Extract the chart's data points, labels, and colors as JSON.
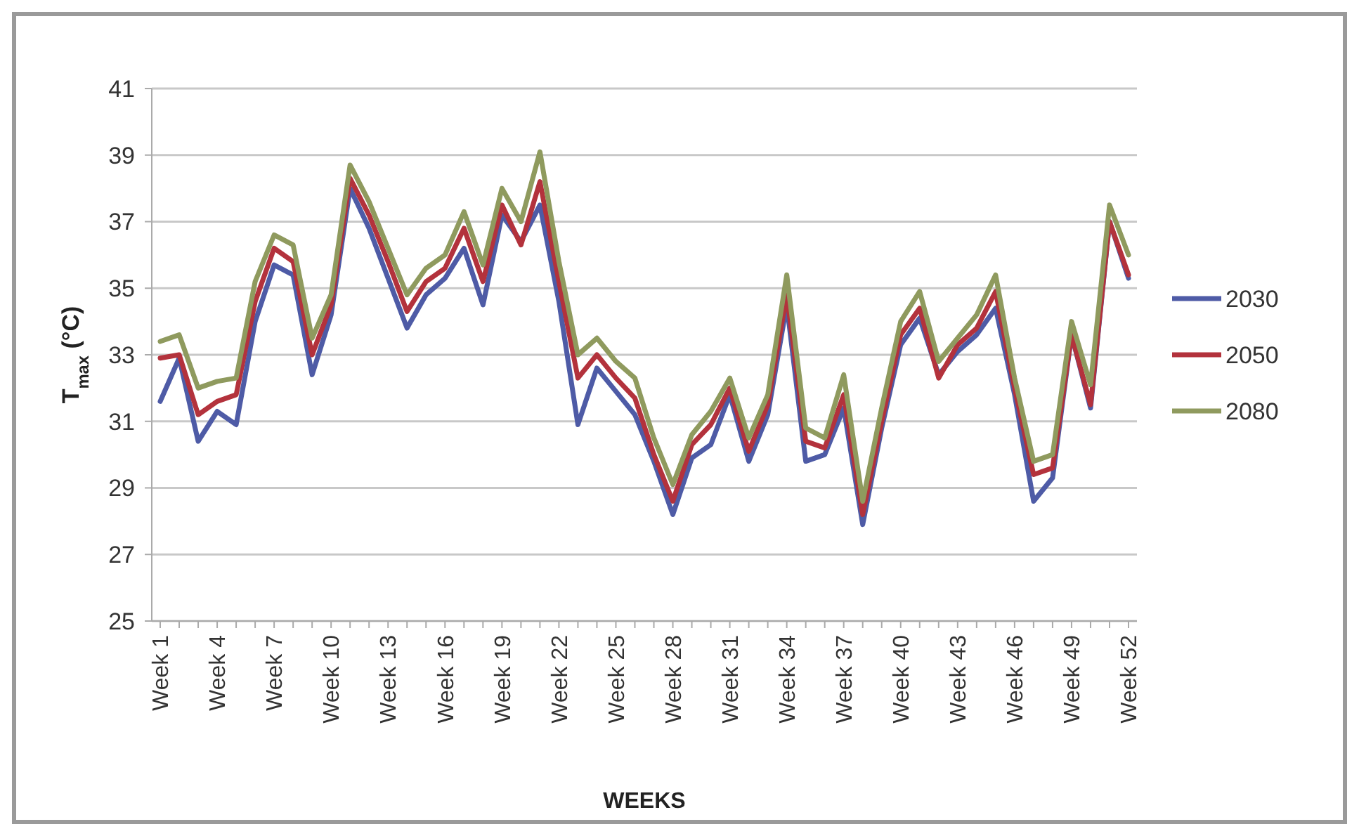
{
  "chart_data": {
    "type": "line",
    "xlabel": "WEEKS",
    "ylabel": "T$_{max}$ (°C)",
    "categories": [
      "Week 1",
      null,
      null,
      "Week 4",
      null,
      null,
      "Week 7",
      null,
      null,
      "Week 10",
      null,
      null,
      "Week 13",
      null,
      null,
      "Week 16",
      null,
      null,
      "Week 19",
      null,
      null,
      "Week 22",
      null,
      null,
      "Week 25",
      null,
      null,
      "Week 28",
      null,
      null,
      "Week 31",
      null,
      null,
      "Week 34",
      null,
      null,
      "Week 37",
      null,
      null,
      "Week 40",
      null,
      null,
      "Week 43",
      null,
      null,
      "Week 46",
      null,
      null,
      "Week 49",
      null,
      null,
      "Week 52"
    ],
    "ylim": [
      25,
      41
    ],
    "yticks": [
      25,
      27,
      29,
      31,
      33,
      35,
      37,
      39,
      41
    ],
    "grid": "y",
    "legend": "right",
    "line_style": "solid",
    "series": [
      {
        "name": "2030",
        "color": "#4e5ba6",
        "values": [
          31.6,
          32.9,
          30.4,
          31.3,
          30.9,
          34.0,
          35.7,
          35.4,
          32.4,
          34.2,
          38.0,
          36.8,
          35.3,
          33.8,
          34.8,
          35.3,
          36.2,
          34.5,
          37.2,
          36.4,
          37.5,
          34.6,
          30.9,
          32.6,
          31.9,
          31.2,
          29.8,
          28.2,
          29.9,
          30.3,
          31.8,
          29.8,
          31.2,
          34.5,
          29.8,
          30.0,
          31.4,
          27.9,
          30.8,
          33.3,
          34.1,
          32.4,
          33.1,
          33.6,
          34.4,
          31.8,
          28.6,
          29.3,
          33.6,
          31.4,
          37.0,
          35.3
        ]
      },
      {
        "name": "2050",
        "color": "#b3323c",
        "values": [
          32.9,
          33.0,
          31.2,
          31.6,
          31.8,
          34.6,
          36.2,
          35.8,
          33.0,
          34.5,
          38.3,
          37.2,
          35.8,
          34.3,
          35.2,
          35.6,
          36.8,
          35.2,
          37.5,
          36.3,
          38.2,
          35.2,
          32.3,
          33.0,
          32.3,
          31.7,
          30.0,
          28.6,
          30.3,
          30.9,
          32.0,
          30.1,
          31.5,
          34.8,
          30.4,
          30.2,
          31.8,
          28.2,
          31.0,
          33.6,
          34.4,
          32.3,
          33.3,
          33.8,
          34.9,
          32.0,
          29.4,
          29.6,
          33.6,
          31.5,
          37.0,
          35.4
        ]
      },
      {
        "name": "2080",
        "color": "#8f9a5e",
        "values": [
          33.4,
          33.6,
          32.0,
          32.2,
          32.3,
          35.2,
          36.6,
          36.3,
          33.5,
          34.8,
          38.7,
          37.6,
          36.2,
          34.8,
          35.6,
          36.0,
          37.3,
          35.7,
          38.0,
          37.0,
          39.1,
          35.8,
          33.0,
          33.5,
          32.8,
          32.3,
          30.5,
          29.1,
          30.6,
          31.3,
          32.3,
          30.5,
          31.8,
          35.4,
          30.8,
          30.5,
          32.4,
          28.6,
          31.4,
          34.0,
          34.9,
          32.8,
          33.5,
          34.2,
          35.4,
          32.3,
          29.8,
          30.0,
          34.0,
          32.1,
          37.5,
          36.0
        ]
      }
    ]
  }
}
